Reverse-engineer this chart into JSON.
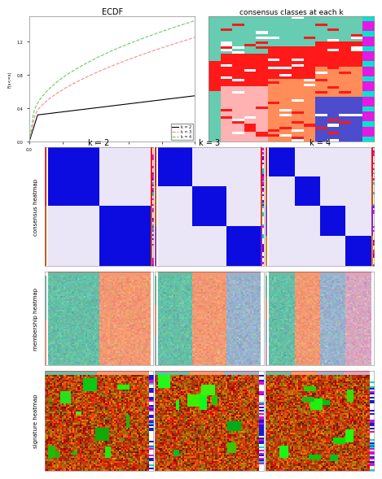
{
  "title_ecdf": "ECDF",
  "title_consensus": "consensus classes at each k",
  "title_k2": "k = 2",
  "title_k3": "k = 3",
  "title_k4": "k = 4",
  "row_labels": [
    "consensus heatmap",
    "membership heatmap",
    "signature heatmap"
  ],
  "ecdf_legend": [
    "k = 2",
    "k = 3",
    "k = 4"
  ],
  "ecdf_colors": [
    "#000000",
    "#ff8888",
    "#66cc66"
  ],
  "background": "#ffffff",
  "border_color": "#888888"
}
